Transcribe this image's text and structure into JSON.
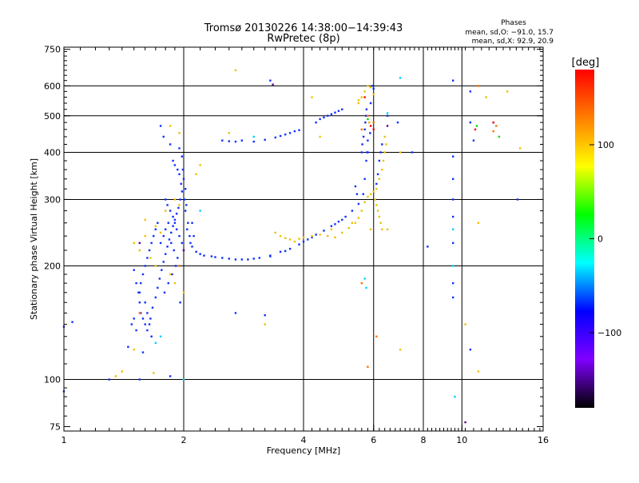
{
  "chart_data": {
    "type": "scatter",
    "title": "Tromsø 20130226 14:38:00−14:39:43",
    "subtitle": "RwPretec (8p)",
    "xlabel": "Frequency [MHz]",
    "ylabel": "Stationary phase Virtual Height [km]",
    "x_scale": "log",
    "y_scale": "log",
    "xlim": [
      1,
      16
    ],
    "ylim": [
      73,
      760
    ],
    "x_ticks": [
      1,
      2,
      4,
      6,
      8,
      10,
      16
    ],
    "y_ticks": [
      75,
      100,
      200,
      300,
      400,
      500,
      600,
      750
    ],
    "grid": true,
    "stats": {
      "title": "Phases",
      "line1": "mean, sd,O: −91.0, 15.7",
      "line2": "mean, sd,X:  92.9, 20.9"
    },
    "colorbar": {
      "label": "[deg]",
      "range": [
        -180,
        180
      ],
      "ticks": [
        100,
        0,
        -100
      ],
      "tick_labels": [
        "100",
        "0",
        "−100"
      ],
      "colors": [
        "#ff0000",
        "#ff7f00",
        "#ffff00",
        "#00ff00",
        "#00ffff",
        "#0000ff",
        "#8000ff",
        "#000000"
      ]
    },
    "series": [
      {
        "name": "O",
        "color": "#1030ff",
        "points": [
          [
            1.75,
            470
          ],
          [
            1.78,
            440
          ],
          [
            1.85,
            420
          ],
          [
            1.95,
            410
          ],
          [
            1.98,
            390
          ],
          [
            1.99,
            360
          ],
          [
            2.0,
            340
          ],
          [
            2.02,
            320
          ],
          [
            2.03,
            290
          ],
          [
            2.05,
            260
          ],
          [
            2.07,
            240
          ],
          [
            2.1,
            225
          ],
          [
            2.2,
            215
          ],
          [
            2.35,
            212
          ],
          [
            2.5,
            210
          ],
          [
            2.7,
            208
          ],
          [
            2.9,
            208
          ],
          [
            3.1,
            210
          ],
          [
            3.3,
            213
          ],
          [
            3.5,
            218
          ],
          [
            3.7,
            222
          ],
          [
            3.9,
            228
          ],
          [
            4.1,
            235
          ],
          [
            4.3,
            242
          ],
          [
            4.5,
            248
          ],
          [
            4.7,
            255
          ],
          [
            4.9,
            262
          ],
          [
            5.1,
            270
          ],
          [
            5.3,
            280
          ],
          [
            5.5,
            292
          ],
          [
            5.65,
            310
          ],
          [
            5.7,
            340
          ],
          [
            5.75,
            380
          ],
          [
            5.8,
            430
          ],
          [
            5.85,
            480
          ],
          [
            5.9,
            540
          ],
          [
            5.95,
            600
          ],
          [
            6.0,
            590
          ],
          [
            5.88,
            450
          ],
          [
            5.78,
            400
          ],
          [
            5.0,
            265
          ],
          [
            4.0,
            232
          ],
          [
            3.0,
            209
          ],
          [
            2.6,
            209
          ],
          [
            2.25,
            213
          ],
          [
            2.15,
            218
          ],
          [
            2.08,
            230
          ],
          [
            2.04,
            250
          ],
          [
            2.02,
            280
          ],
          [
            2.01,
            300
          ],
          [
            1.5,
            195
          ],
          [
            1.52,
            180
          ],
          [
            1.55,
            170
          ],
          [
            1.55,
            160
          ],
          [
            1.56,
            150
          ],
          [
            1.58,
            145
          ],
          [
            1.6,
            140
          ],
          [
            1.62,
            135
          ],
          [
            1.65,
            145
          ],
          [
            1.67,
            155
          ],
          [
            1.7,
            165
          ],
          [
            1.72,
            175
          ],
          [
            1.74,
            185
          ],
          [
            1.76,
            195
          ],
          [
            1.78,
            205
          ],
          [
            1.8,
            215
          ],
          [
            1.82,
            225
          ],
          [
            1.84,
            235
          ],
          [
            1.86,
            245
          ],
          [
            1.88,
            255
          ],
          [
            1.9,
            265
          ],
          [
            1.92,
            275
          ],
          [
            1.94,
            285
          ],
          [
            1.96,
            300
          ],
          [
            1.98,
            315
          ],
          [
            1.97,
            330
          ],
          [
            1.95,
            350
          ],
          [
            1.93,
            360
          ],
          [
            1.9,
            370
          ],
          [
            1.88,
            380
          ],
          [
            1.7,
            250
          ],
          [
            1.72,
            260
          ],
          [
            1.68,
            240
          ],
          [
            1.66,
            230
          ],
          [
            1.64,
            220
          ],
          [
            1.62,
            210
          ],
          [
            1.6,
            200
          ],
          [
            1.58,
            190
          ],
          [
            1.56,
            180
          ],
          [
            1.54,
            170
          ],
          [
            1.8,
            300
          ],
          [
            1.82,
            290
          ],
          [
            1.85,
            280
          ],
          [
            1.88,
            270
          ],
          [
            1.9,
            260
          ],
          [
            1.92,
            250
          ],
          [
            1.95,
            240
          ],
          [
            1.98,
            230
          ],
          [
            2.0,
            220
          ],
          [
            1.93,
            210
          ],
          [
            1.75,
            230
          ],
          [
            1.78,
            240
          ],
          [
            1.8,
            250
          ],
          [
            1.83,
            260
          ],
          [
            1.86,
            230
          ],
          [
            1.89,
            220
          ],
          [
            1.91,
            200
          ],
          [
            1.87,
            190
          ],
          [
            1.83,
            180
          ],
          [
            1.79,
            170
          ],
          [
            1.6,
            160
          ],
          [
            1.62,
            150
          ],
          [
            1.64,
            140
          ],
          [
            1.66,
            130
          ],
          [
            1.5,
            145
          ],
          [
            1.48,
            140
          ],
          [
            1.52,
            135
          ],
          [
            1.45,
            122
          ],
          [
            1.58,
            118
          ],
          [
            1.96,
            160
          ],
          [
            2.5,
            430
          ],
          [
            2.6,
            428
          ],
          [
            2.7,
            427
          ],
          [
            2.8,
            430
          ],
          [
            3.0,
            427
          ],
          [
            3.2,
            432
          ],
          [
            3.4,
            438
          ],
          [
            3.5,
            442
          ],
          [
            3.6,
            446
          ],
          [
            3.7,
            450
          ],
          [
            3.8,
            455
          ],
          [
            3.9,
            458
          ],
          [
            4.3,
            480
          ],
          [
            4.4,
            490
          ],
          [
            4.5,
            495
          ],
          [
            4.6,
            500
          ],
          [
            4.7,
            505
          ],
          [
            4.8,
            510
          ],
          [
            4.9,
            515
          ],
          [
            5.0,
            520
          ],
          [
            5.6,
            400
          ],
          [
            5.62,
            420
          ],
          [
            5.66,
            440
          ],
          [
            5.7,
            460
          ],
          [
            5.72,
            480
          ],
          [
            5.74,
            500
          ],
          [
            5.76,
            520
          ],
          [
            6.2,
            380
          ],
          [
            6.25,
            400
          ],
          [
            6.3,
            420
          ],
          [
            6.1,
            330
          ],
          [
            6.15,
            350
          ],
          [
            5.4,
            325
          ],
          [
            5.45,
            310
          ],
          [
            4.8,
            258
          ],
          [
            4.2,
            238
          ],
          [
            3.6,
            219
          ],
          [
            3.3,
            212
          ],
          [
            2.8,
            208
          ],
          [
            2.4,
            211
          ],
          [
            1.0,
            93
          ],
          [
            1.3,
            100
          ],
          [
            1.55,
            100
          ],
          [
            1.85,
            102
          ],
          [
            9.5,
            620
          ],
          [
            9.5,
            390
          ],
          [
            9.5,
            340
          ],
          [
            9.5,
            300
          ],
          [
            9.5,
            270
          ],
          [
            9.5,
            230
          ],
          [
            9.5,
            180
          ],
          [
            9.5,
            165
          ],
          [
            10.5,
            580
          ],
          [
            10.5,
            480
          ],
          [
            10.7,
            430
          ],
          [
            10.5,
            120
          ],
          [
            12.0,
            480
          ],
          [
            13.8,
            300
          ],
          [
            8.2,
            225
          ],
          [
            3.3,
            620
          ],
          [
            2.7,
            150
          ],
          [
            3.2,
            148
          ],
          [
            5.8,
            400
          ],
          [
            6.5,
            500
          ],
          [
            6.9,
            480
          ],
          [
            7.5,
            400
          ],
          [
            1.05,
            142
          ],
          [
            1.0,
            138
          ],
          [
            2.1,
            260
          ],
          [
            2.12,
            240
          ]
        ]
      },
      {
        "name": "X",
        "color": "#f0c000",
        "points": [
          [
            3.4,
            245
          ],
          [
            3.5,
            240
          ],
          [
            3.6,
            237
          ],
          [
            3.7,
            235
          ],
          [
            3.8,
            232
          ],
          [
            3.9,
            236
          ],
          [
            4.0,
            238
          ],
          [
            4.2,
            240
          ],
          [
            4.4,
            242
          ],
          [
            4.6,
            240
          ],
          [
            4.8,
            238
          ],
          [
            5.0,
            245
          ],
          [
            5.2,
            252
          ],
          [
            5.4,
            260
          ],
          [
            5.5,
            268
          ],
          [
            5.6,
            280
          ],
          [
            5.7,
            295
          ],
          [
            5.8,
            305
          ],
          [
            5.9,
            310
          ],
          [
            6.0,
            315
          ],
          [
            6.05,
            300
          ],
          [
            6.1,
            290
          ],
          [
            6.15,
            280
          ],
          [
            6.2,
            270
          ],
          [
            6.25,
            260
          ],
          [
            6.3,
            250
          ],
          [
            6.1,
            320
          ],
          [
            6.2,
            340
          ],
          [
            6.3,
            360
          ],
          [
            6.35,
            380
          ],
          [
            6.4,
            400
          ],
          [
            6.45,
            420
          ],
          [
            6.4,
            440
          ],
          [
            5.5,
            540
          ],
          [
            5.6,
            560
          ],
          [
            5.7,
            580
          ],
          [
            5.8,
            600
          ],
          [
            5.9,
            595
          ],
          [
            6.0,
            570
          ],
          [
            5.85,
            480
          ],
          [
            1.95,
            450
          ],
          [
            1.85,
            470
          ],
          [
            1.9,
            300
          ],
          [
            1.95,
            290
          ],
          [
            1.8,
            280
          ],
          [
            1.6,
            265
          ],
          [
            1.7,
            255
          ],
          [
            1.75,
            245
          ],
          [
            1.6,
            240
          ],
          [
            1.5,
            230
          ],
          [
            1.55,
            220
          ],
          [
            1.65,
            210
          ],
          [
            1.7,
            200
          ],
          [
            1.85,
            190
          ],
          [
            1.9,
            180
          ],
          [
            2.0,
            170
          ],
          [
            1.5,
            120
          ],
          [
            1.4,
            105
          ],
          [
            1.35,
            102
          ],
          [
            1.68,
            104
          ],
          [
            2.6,
            450
          ],
          [
            2.7,
            660
          ],
          [
            3.2,
            140
          ],
          [
            4.2,
            560
          ],
          [
            4.4,
            440
          ],
          [
            5.5,
            550
          ],
          [
            5.9,
            250
          ],
          [
            6.5,
            250
          ],
          [
            7.0,
            120
          ],
          [
            7.0,
            400
          ],
          [
            11.0,
            105
          ],
          [
            11.0,
            260
          ],
          [
            11.5,
            560
          ],
          [
            13.0,
            580
          ],
          [
            14.0,
            410
          ],
          [
            10.2,
            140
          ],
          [
            2.2,
            370
          ],
          [
            2.15,
            350
          ],
          [
            4.7,
            250
          ],
          [
            5.3,
            260
          ]
        ]
      }
    ]
  },
  "others": [
    {
      "c": "#00d0ff",
      "p": [
        [
          2.0,
          100
        ],
        [
          1.7,
          125
        ],
        [
          1.75,
          130
        ],
        [
          5.7,
          185
        ],
        [
          5.75,
          175
        ],
        [
          6.5,
          508
        ],
        [
          7.0,
          630
        ],
        [
          9.5,
          250
        ],
        [
          9.5,
          200
        ],
        [
          9.6,
          90
        ],
        [
          3.0,
          440
        ],
        [
          2.2,
          280
        ]
      ]
    },
    {
      "c": "#ff7000",
      "p": [
        [
          5.6,
          460
        ],
        [
          5.8,
          500
        ],
        [
          6.0,
          480
        ],
        [
          6.1,
          130
        ],
        [
          5.8,
          108
        ],
        [
          12.0,
          455
        ],
        [
          12.2,
          470
        ],
        [
          11.0,
          600
        ],
        [
          1.95,
          200
        ],
        [
          1.55,
          150
        ],
        [
          5.6,
          180
        ]
      ]
    },
    {
      "c": "#ff0000",
      "p": [
        [
          5.9,
          470
        ],
        [
          6.0,
          460
        ],
        [
          12.0,
          480
        ],
        [
          10.8,
          460
        ],
        [
          5.7,
          560
        ]
      ]
    },
    {
      "c": "#00e000",
      "p": [
        [
          12.4,
          440
        ],
        [
          10.9,
          470
        ],
        [
          5.8,
          490
        ]
      ]
    },
    {
      "c": "#6000a0",
      "p": [
        [
          1.55,
          230
        ],
        [
          2.0,
          220
        ],
        [
          3.35,
          605
        ],
        [
          6.5,
          470
        ],
        [
          10.2,
          77
        ]
      ]
    }
  ]
}
